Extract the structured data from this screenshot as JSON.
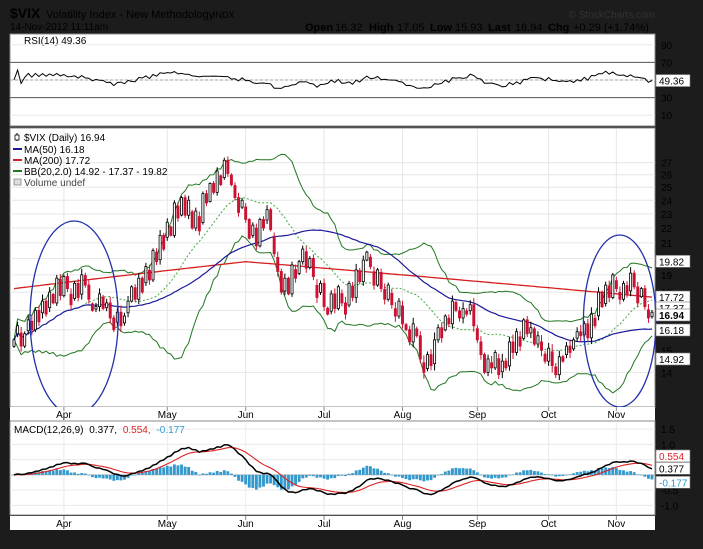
{
  "header": {
    "symbol": "$VIX",
    "name": "Volatility Index - New Methodology",
    "exchange": "INDX",
    "date": "14-Nov-2012 11:11am",
    "open_label": "Open",
    "open": "16.32",
    "high_label": "High",
    "high": "17.05",
    "low_label": "Low",
    "low": "15.93",
    "last_label": "Last",
    "last": "16.94",
    "chg_label": "Chg",
    "chg": "+0.29 (+1.74%)",
    "watermark": "© StockCharts.com"
  },
  "colors": {
    "frame": "#1c1c1c",
    "candle_up": "#000000",
    "candle_down": "#cc1133",
    "ma50": "#1a1a99",
    "ma200": "#d62020",
    "bb": "#227722",
    "bb_mid": "#44aa44",
    "macd": "#000000",
    "signal": "#dd2222",
    "hist": "#3399cc",
    "ellipse": "#2233aa",
    "rsi": "#000000"
  },
  "chart_data": [
    {
      "type": "line",
      "panel": "rsi",
      "label": "RSI(14) 49.36",
      "last_value": "49.36",
      "ylim": [
        0,
        100
      ],
      "ref_lines": [
        30,
        70
      ],
      "tick_labels": [
        "90",
        "70",
        "50",
        "30",
        "10"
      ],
      "tick_values": [
        90,
        70,
        50,
        30,
        10
      ]
    },
    {
      "type": "candlestick",
      "panel": "price",
      "legend": [
        {
          "text": "$VIX (Daily) 16.94",
          "color": "#000000",
          "icon": "candle"
        },
        {
          "text": "MA(50) 16.18",
          "color": "#1a1a99",
          "icon": "line"
        },
        {
          "text": "MA(200) 17.72",
          "color": "#d62020",
          "icon": "line"
        },
        {
          "text": "BB(20,2.0) 14.92 - 17.37 - 19.82",
          "color": "#227722",
          "icon": "line"
        },
        {
          "text": "Volume undef",
          "color": "#888888",
          "icon": "box"
        }
      ],
      "y_scale": "log",
      "ylim": [
        12.6,
        30.0
      ],
      "tick_labels": [
        "27",
        "26",
        "25",
        "24",
        "23",
        "22",
        "21",
        "20",
        "19",
        "18",
        "17",
        "16",
        "15",
        "14"
      ],
      "tick_values": [
        27,
        26,
        25,
        24,
        23,
        22,
        21,
        20,
        19,
        18,
        17,
        16,
        15,
        14
      ],
      "price_tags": [
        {
          "text": "19.82",
          "value": 19.82,
          "fill": "#ffffff",
          "color": "#000000"
        },
        {
          "text": "17.72",
          "value": 17.72,
          "fill": "#ffffff",
          "color": "#000000"
        },
        {
          "text": "17.37",
          "value": 17.37,
          "fill": "#ffffff",
          "color": "#000000"
        },
        {
          "text": "16.94",
          "value": 16.94,
          "fill": "#ffffff",
          "color": "#000000"
        },
        {
          "text": "16.18",
          "value": 16.18,
          "fill": "#ffffff",
          "color": "#000000"
        },
        {
          "text": "14.92",
          "value": 14.92,
          "fill": "#ffffff",
          "color": "#000000"
        }
      ],
      "months": [
        "Apr",
        "May",
        "Jun",
        "Jul",
        "Aug",
        "Sep",
        "Oct",
        "Nov"
      ],
      "month_starts": [
        14,
        43,
        65,
        87,
        109,
        130,
        150,
        169
      ],
      "series": [
        {
          "name": "$VIX",
          "close": [
            15.5,
            16.2,
            15.2,
            15.8,
            16.5,
            16.0,
            17.0,
            16.4,
            17.5,
            16.8,
            18.0,
            17.4,
            18.8,
            17.8,
            18.9,
            18.2,
            17.3,
            18.5,
            17.7,
            19.0,
            18.4,
            17.6,
            17.0,
            17.2,
            17.9,
            17.1,
            17.4,
            16.6,
            16.0,
            16.9,
            16.2,
            16.7,
            17.5,
            18.3,
            17.6,
            18.8,
            18.0,
            19.5,
            18.7,
            20.5,
            19.8,
            21.5,
            20.6,
            22.4,
            21.5,
            23.8,
            22.7,
            24.2,
            22.9,
            24.0,
            22.0,
            23.2,
            21.8,
            24.5,
            23.8,
            25.3,
            24.6,
            26.3,
            25.2,
            27.2,
            26.1,
            25.2,
            24.2,
            23.1,
            24.0,
            22.6,
            21.3,
            22.2,
            20.8,
            22.6,
            22.0,
            23.3,
            21.9,
            20.3,
            19.2,
            18.0,
            18.8,
            17.9,
            19.6,
            18.8,
            19.8,
            20.6,
            19.4,
            20.0,
            18.9,
            17.7,
            18.5,
            17.2,
            16.8,
            17.9,
            17.1,
            18.3,
            17.4,
            16.8,
            18.5,
            17.7,
            19.3,
            18.6,
            19.9,
            20.4,
            19.5,
            18.4,
            19.3,
            18.2,
            17.6,
            18.4,
            17.3,
            16.7,
            17.5,
            16.3,
            16.0,
            15.4,
            16.3,
            15.7,
            14.6,
            14.0,
            14.8,
            14.3,
            15.5,
            16.1,
            15.6,
            16.7,
            16.3,
            17.5,
            17.0,
            16.6,
            17.1,
            16.8,
            17.3,
            16.2,
            15.5,
            14.8,
            14.0,
            14.6,
            14.2,
            14.9,
            13.9,
            14.5,
            14.2,
            15.4,
            14.9,
            15.9,
            15.2,
            16.5,
            15.8,
            16.1,
            15.3,
            15.7,
            15.0,
            14.5,
            15.1,
            14.3,
            13.9,
            14.7,
            14.5,
            15.2,
            14.9,
            15.5,
            15.9,
            15.7,
            16.3,
            15.6,
            16.8,
            16.2,
            18.0,
            17.2,
            18.4,
            17.7,
            19.0,
            18.2,
            17.6,
            18.5,
            17.9,
            19.1,
            18.3,
            17.4,
            18.2,
            17.2,
            16.6,
            16.9
          ]
        },
        {
          "name": "MA(50)",
          "last": 16.18
        },
        {
          "name": "MA(200)",
          "last": 17.72
        },
        {
          "name": "BB(20,2.0)",
          "lower": 14.92,
          "middle": 17.37,
          "upper": 19.82
        }
      ],
      "annotations": [
        {
          "type": "ellipse",
          "around": "April"
        },
        {
          "type": "ellipse",
          "around": "November"
        }
      ]
    },
    {
      "type": "line",
      "panel": "macd",
      "label_main": "MACD(12,26,9)",
      "label_v1": "0.377,",
      "label_v2": "0.554,",
      "label_v3": "-0.177",
      "ylim": [
        -1.25,
        1.7
      ],
      "tick_labels": [
        "1.5",
        "1.0",
        "0.5",
        "0.0",
        "-0.5",
        "-1.0"
      ],
      "tick_values": [
        1.5,
        1.0,
        0.5,
        0.0,
        -0.5,
        -1.0
      ],
      "price_tags": [
        {
          "text": "0.554",
          "value": 0.554,
          "fill": "#ffffff",
          "color": "#000000"
        },
        {
          "text": "0.377",
          "value": 0.377,
          "fill": "#ffffff",
          "color": "#000000"
        },
        {
          "text": "-0.177",
          "value": -0.177,
          "fill": "#ffffff",
          "color": "#000000"
        }
      ]
    }
  ]
}
